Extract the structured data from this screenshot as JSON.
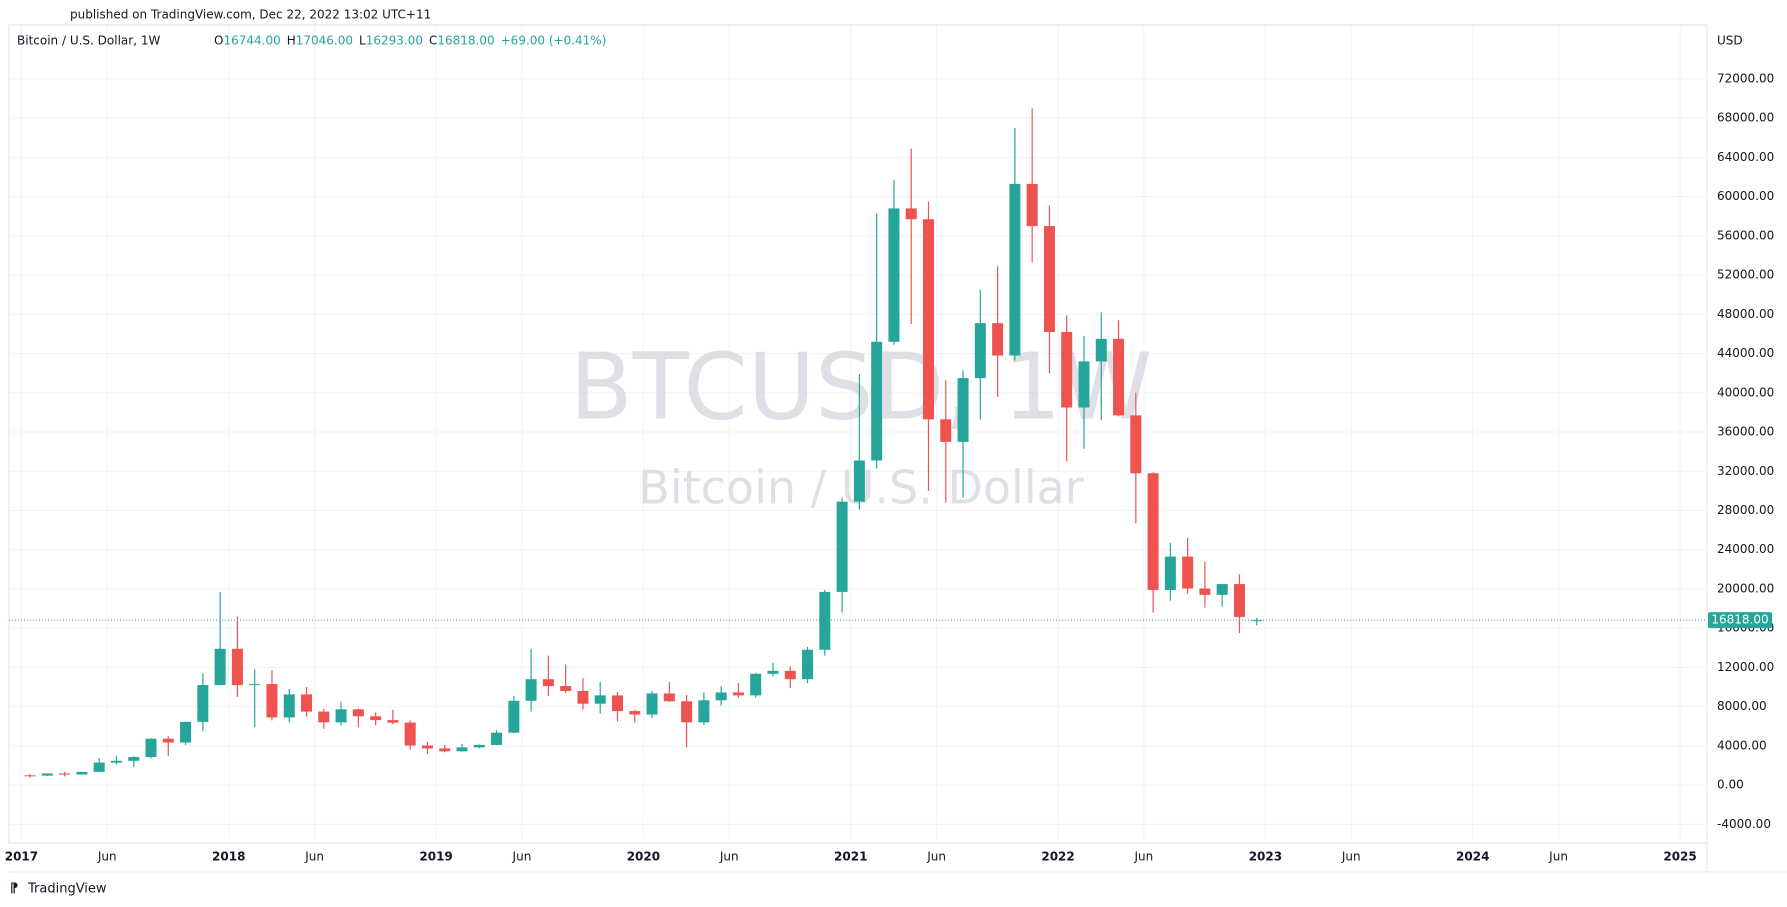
{
  "header": {
    "published": "published on TradingView.com, Dec 22, 2022 13:02 UTC+11",
    "symbol": "Bitcoin / U.S. Dollar, 1W",
    "ohlc": [
      {
        "key": "O",
        "value": "16744.00"
      },
      {
        "key": "H",
        "value": "17046.00"
      },
      {
        "key": "L",
        "value": "16293.00"
      },
      {
        "key": "C",
        "value": "16818.00"
      }
    ],
    "change": "+69.00 (+0.41%)"
  },
  "watermark": {
    "ticker": "BTCUSD, 1W",
    "name": "Bitcoin / U.S. Dollar"
  },
  "footer": "TradingView",
  "chart_data": {
    "type": "candlestick",
    "currency": "USD",
    "up_color": "#26a69a",
    "down_color": "#ef5350",
    "grid": true,
    "x": [
      "2017-01",
      "2017-02",
      "2017-03",
      "2017-04",
      "2017-05",
      "2017-06",
      "2017-07",
      "2017-08",
      "2017-09",
      "2017-10",
      "2017-11",
      "2017-12",
      "2018-01",
      "2018-02",
      "2018-03",
      "2018-04",
      "2018-05",
      "2018-06",
      "2018-07",
      "2018-08",
      "2018-09",
      "2018-10",
      "2018-11",
      "2018-12",
      "2019-01",
      "2019-02",
      "2019-03",
      "2019-04",
      "2019-05",
      "2019-06",
      "2019-07",
      "2019-08",
      "2019-09",
      "2019-10",
      "2019-11",
      "2019-12",
      "2020-01",
      "2020-02",
      "2020-03",
      "2020-04",
      "2020-05",
      "2020-06",
      "2020-07",
      "2020-08",
      "2020-09",
      "2020-10",
      "2020-11",
      "2020-12",
      "2021-01",
      "2021-02",
      "2021-03",
      "2021-04",
      "2021-05",
      "2021-06",
      "2021-07",
      "2021-08",
      "2021-09",
      "2021-10",
      "2021-11",
      "2021-12",
      "2022-01",
      "2022-02",
      "2022-03",
      "2022-04",
      "2022-05",
      "2022-06",
      "2022-07",
      "2022-08",
      "2022-09",
      "2022-10",
      "2022-11",
      "2022-12"
    ],
    "open": [
      1000,
      970,
      1190,
      1080,
      1350,
      2300,
      2480,
      2870,
      4730,
      4340,
      6450,
      10200,
      13900,
      10200,
      10300,
      6900,
      9250,
      7500,
      6400,
      7730,
      7020,
      6630,
      6370,
      4040,
      3740,
      3450,
      3850,
      4100,
      5350,
      8600,
      10800,
      10100,
      9600,
      8300,
      9150,
      7550,
      7200,
      9350,
      8550,
      6400,
      8650,
      9450,
      9150,
      11350,
      11650,
      10800,
      13800,
      19700,
      28900,
      33100,
      45200,
      58800,
      57700,
      37300,
      35000,
      41500,
      47100,
      43800,
      61300,
      57000,
      46200,
      38500,
      43200,
      45500,
      37700,
      31800,
      19900,
      23300,
      20050,
      19400,
      20500,
      16744
    ],
    "high": [
      1150,
      1200,
      1350,
      1350,
      2760,
      3000,
      2950,
      4770,
      4980,
      6470,
      11400,
      19700,
      17200,
      11800,
      11700,
      9800,
      10000,
      7800,
      8500,
      7800,
      7400,
      7700,
      6600,
      4400,
      4100,
      4200,
      4150,
      5600,
      9100,
      13900,
      13200,
      12300,
      10900,
      10500,
      9500,
      7700,
      9600,
      10500,
      9200,
      9450,
      10100,
      10400,
      11450,
      12500,
      12100,
      14100,
      19900,
      29300,
      41900,
      58300,
      61700,
      64900,
      59500,
      41300,
      42300,
      50500,
      52900,
      67000,
      69000,
      59100,
      47900,
      45800,
      48200,
      47400,
      40000,
      31900,
      24700,
      25200,
      22800,
      20500,
      21500,
      17046
    ],
    "low": [
      750,
      920,
      890,
      1080,
      1350,
      2100,
      1830,
      2700,
      2970,
      4110,
      5500,
      10700,
      9000,
      5900,
      6600,
      6400,
      7000,
      5750,
      6100,
      5900,
      6100,
      6200,
      3600,
      3150,
      3350,
      3400,
      3750,
      4080,
      5300,
      7500,
      9100,
      9400,
      7700,
      7300,
      6500,
      6400,
      6850,
      8500,
      3850,
      6150,
      8100,
      8900,
      8900,
      11100,
      9900,
      10400,
      13200,
      17600,
      28100,
      32300,
      44900,
      47000,
      30000,
      28800,
      29300,
      37300,
      39600,
      43300,
      53300,
      42000,
      33000,
      34300,
      37200,
      37600,
      26700,
      17600,
      18800,
      19500,
      18100,
      18200,
      15500,
      16293
    ],
    "close": [
      970,
      1190,
      1080,
      1350,
      2300,
      2480,
      2870,
      4730,
      4340,
      6450,
      10200,
      13900,
      10200,
      10300,
      6900,
      9250,
      7500,
      6400,
      7730,
      7020,
      6630,
      6370,
      4040,
      3740,
      3450,
      3850,
      4100,
      5350,
      8600,
      10800,
      10100,
      9600,
      8300,
      9150,
      7550,
      7200,
      9350,
      8550,
      6400,
      8650,
      9450,
      9150,
      11350,
      11650,
      10800,
      13800,
      19700,
      28900,
      33100,
      45200,
      58800,
      57700,
      37300,
      35000,
      41500,
      47100,
      43800,
      61300,
      57000,
      46200,
      38500,
      43200,
      45500,
      37700,
      31800,
      19900,
      23300,
      20050,
      19400,
      20500,
      17150,
      16818
    ],
    "last_label": "16818.00",
    "xlim": [
      2016.94,
      2025.13
    ],
    "xticks": [
      2017,
      {
        "value": 2017.414,
        "label": "Jun"
      },
      2018,
      {
        "value": 2018.414,
        "label": "Jun"
      },
      2019,
      {
        "value": 2019.414,
        "label": "Jun"
      },
      2020,
      {
        "value": 2020.414,
        "label": "Jun"
      },
      2021,
      {
        "value": 2021.414,
        "label": "Jun"
      },
      2022,
      {
        "value": 2022.414,
        "label": "Jun"
      },
      2023,
      {
        "value": 2023.414,
        "label": "Jun"
      },
      2024,
      {
        "value": 2024.414,
        "label": "Jun"
      },
      2025
    ],
    "ylim": [
      -5900,
      77500
    ],
    "yticks": [
      {
        "value": -4000,
        "label": "-4000.00"
      },
      {
        "value": 0,
        "label": "0.00"
      },
      {
        "value": 4000,
        "label": "4000.00"
      },
      {
        "value": 8000,
        "label": "8000.00"
      },
      {
        "value": 12000,
        "label": "12000.00"
      },
      {
        "value": 16000,
        "label": "16000.00"
      },
      {
        "value": 20000,
        "label": "20000.00"
      },
      {
        "value": 24000,
        "label": "24000.00"
      },
      {
        "value": 28000,
        "label": "28000.00"
      },
      {
        "value": 32000,
        "label": "32000.00"
      },
      {
        "value": 36000,
        "label": "36000.00"
      },
      {
        "value": 40000,
        "label": "40000.00"
      },
      {
        "value": 44000,
        "label": "44000.00"
      },
      {
        "value": 48000,
        "label": "48000.00"
      },
      {
        "value": 52000,
        "label": "52000.00"
      },
      {
        "value": 56000,
        "label": "56000.00"
      },
      {
        "value": 60000,
        "label": "60000.00"
      },
      {
        "value": 64000,
        "label": "64000.00"
      },
      {
        "value": 68000,
        "label": "68000.00"
      },
      {
        "value": 72000,
        "label": "72000.00"
      }
    ]
  }
}
